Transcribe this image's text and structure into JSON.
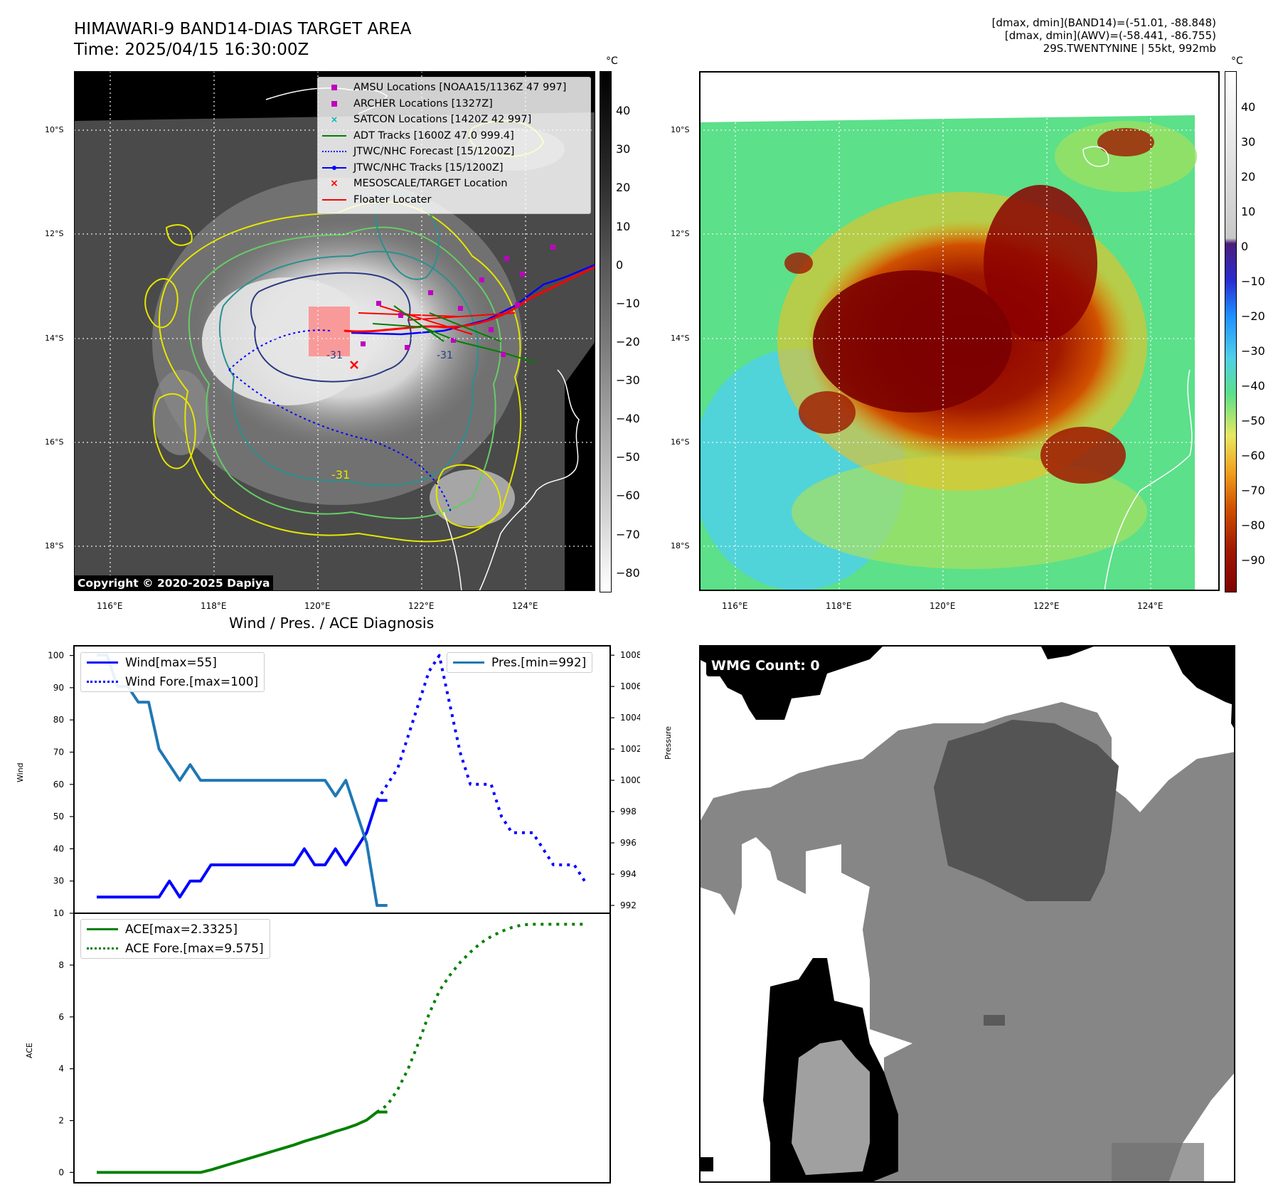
{
  "titles": {
    "main": "HIMAWARI-9 BAND14-DIAS TARGET AREA",
    "time": "Time: 2025/04/15 16:30:00Z",
    "info_line1": "[dmax, dmin](BAND14)=(-51.01, -88.848)",
    "info_line2": "[dmax, dmin](AWV)=(-58.441, -86.755)",
    "info_line3": "29S.TWENTYNINE | 55kt, 992mb",
    "diagnosis": "Wind / Pres. / ACE Diagnosis"
  },
  "map": {
    "lat_labels": [
      "10°S",
      "12°S",
      "14°S",
      "16°S",
      "18°S"
    ],
    "lon_labels": [
      "116°E",
      "118°E",
      "120°E",
      "122°E",
      "124°E"
    ],
    "unit": "°C",
    "gray_cbar_ticks": [
      "40",
      "30",
      "20",
      "10",
      "0",
      "−10",
      "−20",
      "−30",
      "−40",
      "−50",
      "−60",
      "−70",
      "−80"
    ],
    "color_cbar_ticks": [
      "40",
      "30",
      "20",
      "10",
      "0",
      "−10",
      "−20",
      "−30",
      "−40",
      "−50",
      "−60",
      "−70",
      "−80",
      "−90"
    ],
    "copyright": "Copyright © 2020-2025 Dapiya",
    "contour_labels": [
      "-31",
      "-31",
      "-31"
    ],
    "legend": [
      {
        "label": "AMSU Locations [NOAA15/1136Z 47 997]",
        "marker": "square",
        "color": "#c000c0"
      },
      {
        "label": "ARCHER Locations [1327Z]",
        "marker": "square",
        "color": "#c000c0"
      },
      {
        "label": "SATCON Locations [1420Z 42 997]",
        "marker": "x",
        "color": "#00b0b0"
      },
      {
        "label": "ADT Tracks [1600Z 47.0 999.4]",
        "marker": "line",
        "color": "#008000"
      },
      {
        "label": "JTWC/NHC Forecast [15/1200Z]",
        "marker": "dotted",
        "color": "#0000ff"
      },
      {
        "label": "JTWC/NHC Tracks [15/1200Z]",
        "marker": "line-dot",
        "color": "#0000ff"
      },
      {
        "label": "MESOSCALE/TARGET Location",
        "marker": "x",
        "color": "#ff0000"
      },
      {
        "label": "Floater Locater",
        "marker": "line",
        "color": "#ff0000"
      }
    ]
  },
  "wmg": {
    "label": "WMG Count: 0"
  },
  "chart_data": [
    {
      "type": "line",
      "title": "Wind / Pres. / ACE Diagnosis",
      "ylabel": "Wind",
      "y2label": "Pressure",
      "ylim": [
        20,
        103
      ],
      "y2lim": [
        991.5,
        1008.6
      ],
      "yticks": [
        "100",
        "90",
        "80",
        "70",
        "60",
        "50",
        "40",
        "30"
      ],
      "y2ticks": [
        "1008",
        "1006",
        "1004",
        "1002",
        "1000",
        "998",
        "996",
        "994",
        "992"
      ],
      "series": [
        {
          "name": "Wind[max=55]",
          "axis": "left",
          "color": "#0000ff",
          "style": "solid",
          "x": [
            0,
            1,
            2,
            3,
            4,
            5,
            6,
            7,
            8,
            9,
            10,
            11,
            12,
            13,
            14,
            15,
            16,
            17,
            18,
            19,
            20,
            21,
            22,
            23,
            24,
            25,
            26,
            27,
            28
          ],
          "y": [
            25,
            25,
            25,
            25,
            25,
            25,
            25,
            30,
            25,
            30,
            30,
            35,
            35,
            35,
            35,
            35,
            35,
            35,
            35,
            35,
            40,
            35,
            35,
            40,
            35,
            40,
            45,
            55,
            55
          ]
        },
        {
          "name": "Wind Fore.[max=100]",
          "axis": "left",
          "color": "#0000ff",
          "style": "dotted",
          "x": [
            27,
            28,
            29,
            30,
            31,
            32,
            33,
            34,
            35,
            36,
            37,
            38,
            39,
            40,
            41,
            42,
            43,
            44,
            45,
            46,
            47
          ],
          "y": [
            55,
            60,
            65,
            75,
            85,
            95,
            100,
            85,
            70,
            60,
            60,
            60,
            50,
            45,
            45,
            45,
            40,
            35,
            35,
            35,
            30
          ]
        },
        {
          "name": "Pres.[min=992]",
          "axis": "right",
          "color": "#1f77b4",
          "style": "solid",
          "x": [
            0,
            1,
            2,
            3,
            4,
            5,
            6,
            7,
            8,
            9,
            10,
            11,
            12,
            13,
            14,
            15,
            16,
            17,
            18,
            19,
            20,
            21,
            22,
            23,
            24,
            25,
            26,
            27,
            28
          ],
          "y": [
            1008,
            1008,
            1006,
            1006,
            1005,
            1005,
            1002,
            1001,
            1000,
            1001,
            1000,
            1000,
            1000,
            1000,
            1000,
            1000,
            1000,
            1000,
            1000,
            1000,
            1000,
            1000,
            1000,
            999,
            1000,
            998,
            996,
            992,
            992
          ]
        }
      ]
    },
    {
      "type": "line",
      "ylabel": "ACE",
      "ylim": [
        -0.4,
        10
      ],
      "yticks": [
        "10",
        "8",
        "6",
        "4",
        "2",
        "0"
      ],
      "series": [
        {
          "name": "ACE[max=2.3325]",
          "color": "#008000",
          "style": "solid",
          "x": [
            0,
            1,
            2,
            3,
            4,
            5,
            6,
            7,
            8,
            9,
            10,
            11,
            12,
            13,
            14,
            15,
            16,
            17,
            18,
            19,
            20,
            21,
            22,
            23,
            24,
            25,
            26,
            27,
            28
          ],
          "y": [
            0,
            0,
            0,
            0,
            0,
            0,
            0,
            0,
            0,
            0,
            0,
            0.1,
            0.22,
            0.34,
            0.46,
            0.58,
            0.7,
            0.82,
            0.94,
            1.06,
            1.2,
            1.32,
            1.44,
            1.58,
            1.7,
            1.84,
            2.02,
            2.33,
            2.33
          ]
        },
        {
          "name": "ACE Fore.[max=9.575]",
          "color": "#008000",
          "style": "dotted",
          "x": [
            27,
            28,
            29,
            30,
            31,
            32,
            33,
            34,
            35,
            36,
            37,
            38,
            39,
            40,
            41,
            42,
            43,
            44,
            45,
            46,
            47
          ],
          "y": [
            2.33,
            2.6,
            3.2,
            4.0,
            5.0,
            6.1,
            7.0,
            7.6,
            8.1,
            8.5,
            8.85,
            9.1,
            9.3,
            9.45,
            9.55,
            9.575,
            9.575,
            9.575,
            9.575,
            9.575,
            9.575
          ]
        }
      ]
    }
  ]
}
